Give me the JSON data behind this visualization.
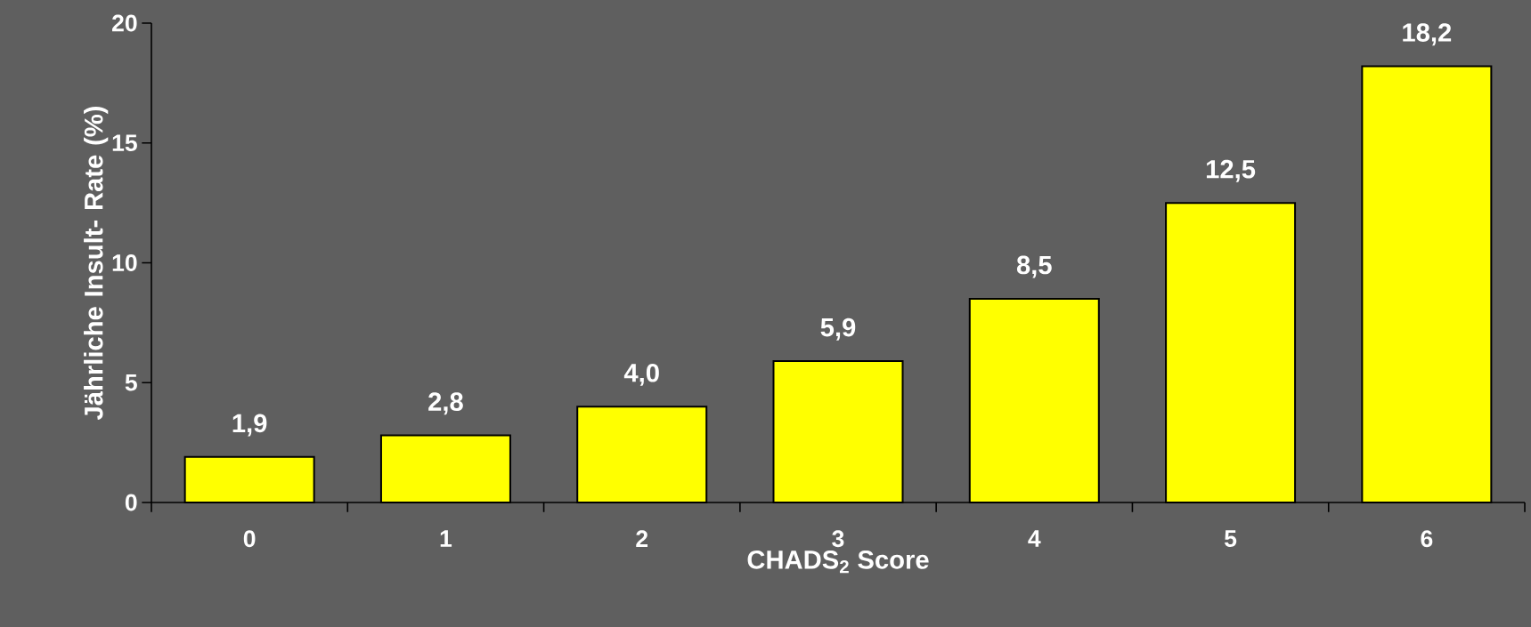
{
  "chart_data": {
    "type": "bar",
    "xlabel": "CHADS$_{2}$ Score",
    "ylabel": "Jährliche Insult- Rate (%)",
    "categories": [
      "0",
      "1",
      "2",
      "3",
      "4",
      "5",
      "6"
    ],
    "values": [
      1.9,
      2.8,
      4.0,
      5.9,
      8.5,
      12.5,
      18.2
    ],
    "value_labels": [
      "1,9",
      "2,8",
      "4,0",
      "5,9",
      "8,5",
      "12,5",
      "18,2"
    ],
    "color": "#ffff00",
    "ylim": [
      0,
      20
    ],
    "yticks": [
      0,
      5,
      10,
      15,
      20
    ]
  }
}
